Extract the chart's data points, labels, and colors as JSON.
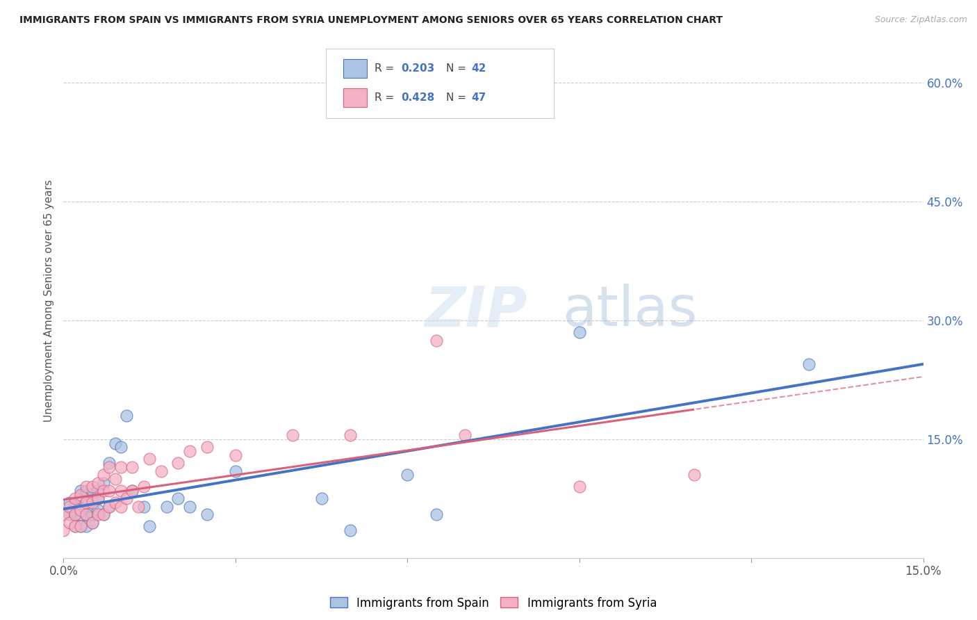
{
  "title": "IMMIGRANTS FROM SPAIN VS IMMIGRANTS FROM SYRIA UNEMPLOYMENT AMONG SENIORS OVER 65 YEARS CORRELATION CHART",
  "source": "Source: ZipAtlas.com",
  "ylabel": "Unemployment Among Seniors over 65 years",
  "xlim": [
    0.0,
    0.15
  ],
  "ylim": [
    0.0,
    0.65
  ],
  "spain_R": 0.203,
  "spain_N": 42,
  "syria_R": 0.428,
  "syria_N": 47,
  "spain_color": "#aac4e2",
  "spain_line_color": "#4472c4",
  "syria_color": "#f4b0c4",
  "syria_line_color": "#d9607a",
  "watermark_zip": "ZIP",
  "watermark_atlas": "atlas",
  "spain_x": [
    0.001,
    0.001,
    0.002,
    0.002,
    0.002,
    0.003,
    0.003,
    0.003,
    0.003,
    0.004,
    0.004,
    0.004,
    0.004,
    0.004,
    0.005,
    0.005,
    0.005,
    0.005,
    0.006,
    0.006,
    0.006,
    0.007,
    0.007,
    0.008,
    0.008,
    0.009,
    0.01,
    0.011,
    0.012,
    0.014,
    0.015,
    0.018,
    0.02,
    0.022,
    0.025,
    0.03,
    0.045,
    0.05,
    0.06,
    0.065,
    0.09,
    0.13
  ],
  "spain_y": [
    0.055,
    0.07,
    0.04,
    0.055,
    0.07,
    0.04,
    0.055,
    0.075,
    0.085,
    0.04,
    0.055,
    0.065,
    0.075,
    0.085,
    0.045,
    0.055,
    0.065,
    0.085,
    0.06,
    0.075,
    0.085,
    0.055,
    0.095,
    0.065,
    0.12,
    0.145,
    0.14,
    0.18,
    0.085,
    0.065,
    0.04,
    0.065,
    0.075,
    0.065,
    0.055,
    0.11,
    0.075,
    0.035,
    0.105,
    0.055,
    0.285,
    0.245
  ],
  "syria_x": [
    0.0,
    0.0,
    0.001,
    0.001,
    0.002,
    0.002,
    0.002,
    0.003,
    0.003,
    0.003,
    0.004,
    0.004,
    0.004,
    0.005,
    0.005,
    0.005,
    0.006,
    0.006,
    0.006,
    0.007,
    0.007,
    0.007,
    0.008,
    0.008,
    0.008,
    0.009,
    0.009,
    0.01,
    0.01,
    0.01,
    0.011,
    0.012,
    0.012,
    0.013,
    0.014,
    0.015,
    0.017,
    0.02,
    0.022,
    0.025,
    0.03,
    0.04,
    0.05,
    0.065,
    0.07,
    0.09,
    0.11
  ],
  "syria_y": [
    0.035,
    0.055,
    0.045,
    0.065,
    0.04,
    0.055,
    0.075,
    0.04,
    0.06,
    0.08,
    0.055,
    0.07,
    0.09,
    0.045,
    0.07,
    0.09,
    0.055,
    0.075,
    0.095,
    0.055,
    0.085,
    0.105,
    0.065,
    0.085,
    0.115,
    0.07,
    0.1,
    0.065,
    0.085,
    0.115,
    0.075,
    0.085,
    0.115,
    0.065,
    0.09,
    0.125,
    0.11,
    0.12,
    0.135,
    0.14,
    0.13,
    0.155,
    0.155,
    0.275,
    0.155,
    0.09,
    0.105
  ]
}
